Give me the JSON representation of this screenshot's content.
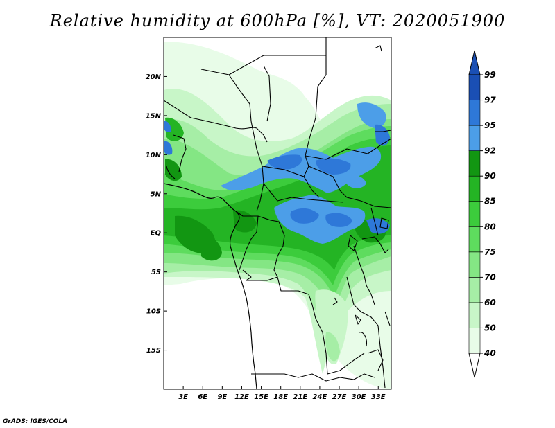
{
  "title": "Relative humidity at 600hPa [%], VT: 2020051900",
  "credit": "GrADS: IGES/COLA",
  "map": {
    "lon_range": [
      0,
      35
    ],
    "lat_range": [
      -20,
      25
    ],
    "lon_ticks": [
      {
        "value": 3,
        "label": "3E"
      },
      {
        "value": 6,
        "label": "6E"
      },
      {
        "value": 9,
        "label": "9E"
      },
      {
        "value": 12,
        "label": "12E"
      },
      {
        "value": 15,
        "label": "15E"
      },
      {
        "value": 18,
        "label": "18E"
      },
      {
        "value": 21,
        "label": "21E"
      },
      {
        "value": 24,
        "label": "24E"
      },
      {
        "value": 27,
        "label": "27E"
      },
      {
        "value": 30,
        "label": "30E"
      },
      {
        "value": 33,
        "label": "33E"
      }
    ],
    "lat_ticks": [
      {
        "value": 20,
        "label": "20N"
      },
      {
        "value": 15,
        "label": "15N"
      },
      {
        "value": 10,
        "label": "10N"
      },
      {
        "value": 5,
        "label": "5N"
      },
      {
        "value": 0,
        "label": "EQ"
      },
      {
        "value": -5,
        "label": "5S"
      },
      {
        "value": -10,
        "label": "10S"
      },
      {
        "value": -15,
        "label": "15S"
      }
    ]
  },
  "colorbar": {
    "levels": [
      "40",
      "50",
      "60",
      "70",
      "75",
      "80",
      "85",
      "90",
      "92",
      "95",
      "97",
      "99"
    ],
    "colors": [
      "#ffffff",
      "#e8fce8",
      "#c8f6c8",
      "#a6eea6",
      "#84e684",
      "#5edc5e",
      "#3ccc3c",
      "#24b424",
      "#129612",
      "#4c9ee8",
      "#2e78d8",
      "#1a4fb4",
      "#1a4fb4"
    ]
  }
}
